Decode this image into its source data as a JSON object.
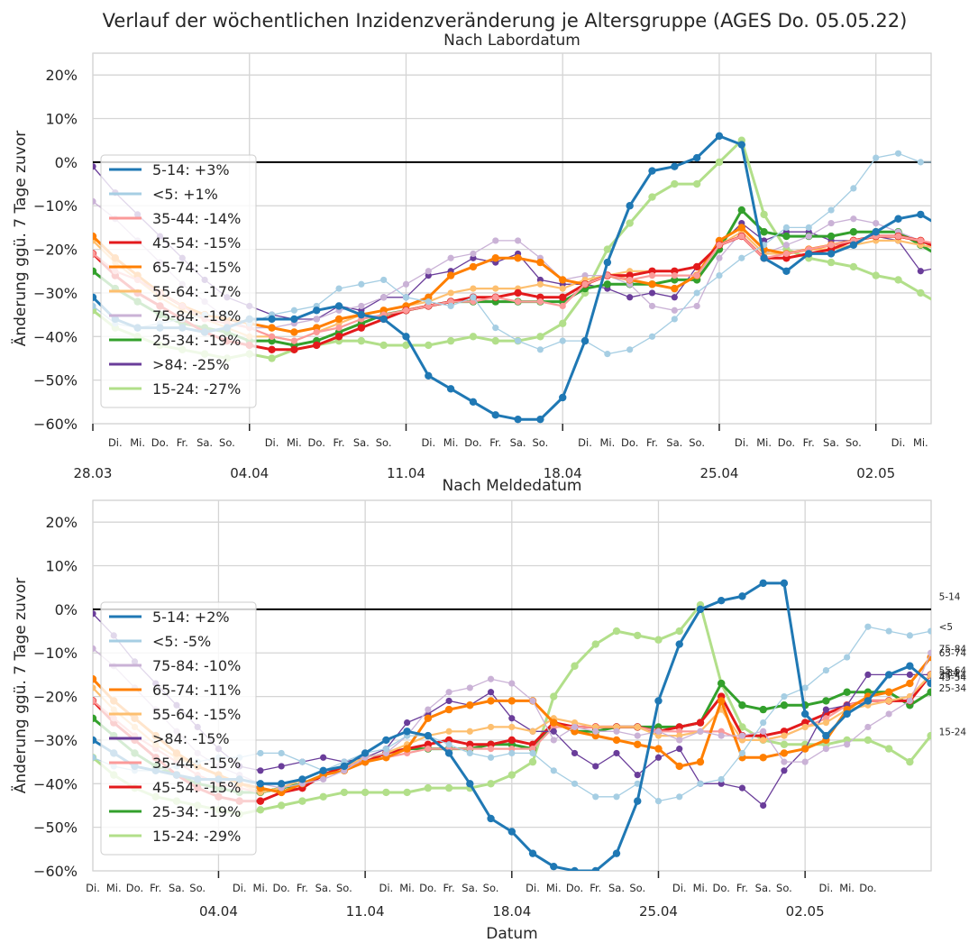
{
  "suptitle": "Verlauf der wöchentlichen Inzidenzveränderung je Altersgruppe (AGES Do. 05.05.22)",
  "colors": {
    "5-14": "#1f78b4",
    "<5": "#a6cee3",
    "35-44": "#fb9a99",
    "45-54": "#e31a1c",
    "65-74": "#ff7f00",
    "55-64": "#fdbf6f",
    "75-84": "#cab2d6",
    "25-34": "#33a02c",
    ">84": "#6a3d9a",
    "15-24": "#b2df8a"
  },
  "chart_data": [
    {
      "type": "line",
      "title": "Nach Labordatum",
      "ylabel": "Änderung ggü. 7 Tage zuvor",
      "xlabel": "",
      "ylim": [
        -60,
        25
      ],
      "yticks": [
        "20%",
        "10%",
        "0%",
        "−10%",
        "−20%",
        "−30%",
        "−40%",
        "−50%",
        "−60%"
      ],
      "grid": true,
      "legend_position": "left",
      "x_start": "28.03",
      "x_end": "05.05",
      "x_major_labels": [
        "28.03",
        "04.04",
        "11.04",
        "18.04",
        "25.04",
        "02.05"
      ],
      "x_minor_labels": [
        "Di.",
        "Mi.",
        "Do.",
        "Fr.",
        "Sa.",
        "So.",
        "Di.",
        "Mi.",
        "Do.",
        "Fr.",
        "Sa.",
        "So.",
        "Di.",
        "Mi.",
        "Do.",
        "Fr.",
        "Sa.",
        "So.",
        "Di.",
        "Mi.",
        "Do.",
        "Fr.",
        "Sa.",
        "So.",
        "Di.",
        "Mi.",
        "Do.",
        "Fr.",
        "Sa.",
        "So.",
        "Di.",
        "Mi."
      ],
      "series": [
        {
          "key": "5-14",
          "legend": "5-14: +3%",
          "end_label": "5-14",
          "values": [
            -31,
            -36,
            -38,
            -38,
            -38,
            -39,
            -38,
            -36,
            -36,
            -36,
            -34,
            -33,
            -35,
            -36,
            -40,
            -49,
            -52,
            -55,
            -58,
            -59,
            -59,
            -54,
            -41,
            -23,
            -10,
            -2,
            -1,
            1,
            6,
            4,
            -22,
            -25,
            -21,
            -21,
            -19,
            -16,
            -13,
            -12,
            -15,
            3
          ],
          "last_i": 39
        },
        {
          "key": "<5",
          "legend": "<5: +1%",
          "end_label": "<5",
          "values": [
            -33,
            -37,
            -38,
            -37,
            -36,
            -35,
            -35,
            -37,
            -35,
            -34,
            -33,
            -29,
            -28,
            -27,
            -31,
            -32,
            -33,
            -31,
            -38,
            -41,
            -43,
            -41,
            -41,
            -44,
            -43,
            -40,
            -36,
            -30,
            -26,
            -22,
            -19,
            -15,
            -15,
            -11,
            -6,
            1,
            2,
            0,
            0,
            1
          ],
          "last_i": 39
        },
        {
          "key": "35-44",
          "legend": "35-44: -14%",
          "end_label": "35-44",
          "values": [
            -21,
            -25,
            -27,
            -30,
            -33,
            -36,
            -37,
            -38,
            -40,
            -41,
            -39,
            -38,
            -36,
            -35,
            -34,
            -33,
            -32,
            -32,
            -31,
            -32,
            -32,
            -33,
            -28,
            -26,
            -27,
            -26,
            -26,
            -26,
            -19,
            -17,
            -22,
            -21,
            -20,
            -19,
            -18,
            -17,
            -17,
            -18,
            -19,
            -14
          ],
          "last_i": 39
        },
        {
          "key": "45-54",
          "legend": "45-54: -15%",
          "end_label": "45-54",
          "values": [
            -21,
            -26,
            -30,
            -33,
            -36,
            -39,
            -41,
            -42,
            -43,
            -43,
            -42,
            -40,
            -38,
            -36,
            -34,
            -33,
            -32,
            -31,
            -31,
            -30,
            -31,
            -31,
            -28,
            -26,
            -26,
            -25,
            -25,
            -24,
            -19,
            -17,
            -22,
            -22,
            -21,
            -20,
            -18,
            -17,
            -17,
            -18,
            -20,
            -15
          ],
          "last_i": 39
        },
        {
          "key": "65-74",
          "legend": "65-74: -15%",
          "end_label": "65-74",
          "values": [
            -17,
            -22,
            -26,
            -30,
            -33,
            -35,
            -36,
            -37,
            -38,
            -39,
            -38,
            -36,
            -35,
            -34,
            -33,
            -31,
            -26,
            -24,
            -22,
            -22,
            -23,
            -27,
            -28,
            -26,
            -27,
            -28,
            -29,
            -26,
            -18,
            -15,
            -20,
            -21,
            -20,
            -19,
            -18,
            -17,
            -17,
            -18,
            -20,
            -15
          ],
          "last_i": 39
        },
        {
          "key": "55-64",
          "legend": "55-64: -17%",
          "end_label": "55-64",
          "values": [
            -18,
            -23,
            -27,
            -31,
            -34,
            -36,
            -38,
            -40,
            -40,
            -41,
            -39,
            -37,
            -35,
            -34,
            -33,
            -32,
            -30,
            -29,
            -29,
            -29,
            -28,
            -29,
            -27,
            -26,
            -25,
            -25,
            -25,
            -24,
            -19,
            -16,
            -21,
            -21,
            -20,
            -20,
            -19,
            -18,
            -18,
            -19,
            -20,
            -17
          ],
          "last_i": 39
        },
        {
          "key": "75-84",
          "legend": "75-84: -18%",
          "end_label": "75-84",
          "values": [
            -9,
            -13,
            -18,
            -23,
            -28,
            -32,
            -36,
            -38,
            -38,
            -37,
            -36,
            -34,
            -33,
            -31,
            -28,
            -25,
            -22,
            -21,
            -18,
            -18,
            -22,
            -27,
            -26,
            -26,
            -28,
            -33,
            -34,
            -33,
            -22,
            -16,
            -21,
            -19,
            -17,
            -14,
            -13,
            -14,
            -16,
            -18,
            -21,
            -18
          ],
          "last_i": 39
        },
        {
          "key": "25-34",
          "legend": "25-34: -19%",
          "end_label": "25-34",
          "values": [
            -25,
            -29,
            -32,
            -35,
            -37,
            -38,
            -39,
            -41,
            -41,
            -42,
            -41,
            -39,
            -37,
            -35,
            -34,
            -33,
            -32,
            -32,
            -32,
            -32,
            -32,
            -32,
            -29,
            -28,
            -28,
            -28,
            -27,
            -27,
            -20,
            -11,
            -16,
            -17,
            -17,
            -17,
            -16,
            -16,
            -16,
            -19,
            -22,
            -19
          ],
          "last_i": 39
        },
        {
          "key": ">84",
          "legend": ">84: -25%",
          "end_label": ">84",
          "values": [
            -1,
            -7,
            -12,
            -17,
            -22,
            -27,
            -31,
            -33,
            -35,
            -36,
            -36,
            -33,
            -34,
            -31,
            -31,
            -26,
            -25,
            -22,
            -23,
            -21,
            -27,
            -28,
            -28,
            -29,
            -31,
            -30,
            -31,
            -24,
            -19,
            -14,
            -18,
            -16,
            -16,
            -18,
            -18,
            -17,
            -18,
            -25,
            -24,
            -24
          ],
          "last_i": 39
        },
        {
          "key": "15-24",
          "legend": "15-24: -27%",
          "end_label": "15-24",
          "values": [
            -34,
            -38,
            -40,
            -42,
            -43,
            -44,
            -45,
            -44,
            -45,
            -43,
            -42,
            -41,
            -41,
            -42,
            -42,
            -42,
            -41,
            -40,
            -41,
            -41,
            -40,
            -37,
            -30,
            -20,
            -14,
            -8,
            -5,
            -5,
            0,
            5,
            -12,
            -20,
            -22,
            -23,
            -24,
            -26,
            -27,
            -30,
            -33,
            -27
          ],
          "last_i": 39
        }
      ]
    },
    {
      "type": "line",
      "title": "Nach Meldedatum",
      "ylabel": "Änderung ggü. 7 Tage zuvor",
      "xlabel": "Datum",
      "ylim": [
        -60,
        25
      ],
      "yticks": [
        "20%",
        "10%",
        "0%",
        "−10%",
        "−20%",
        "−30%",
        "−40%",
        "−50%",
        "−60%"
      ],
      "grid": true,
      "legend_position": "left",
      "x_start": "29.03",
      "x_end": "05.05",
      "x_major_labels": [
        "04.04",
        "11.04",
        "18.04",
        "25.04",
        "02.05"
      ],
      "x_minor_labels": [
        "Di.",
        "Mi.",
        "Do.",
        "Fr.",
        "Sa.",
        "So.",
        "Di.",
        "Mi.",
        "Do.",
        "Fr.",
        "Sa.",
        "So.",
        "Di.",
        "Mi.",
        "Do.",
        "Fr.",
        "Sa.",
        "So.",
        "Di.",
        "Mi.",
        "Do.",
        "Fr.",
        "Sa.",
        "So.",
        "Di.",
        "Mi.",
        "Do.",
        "Fr.",
        "Sa.",
        "So.",
        "Di.",
        "Mi.",
        "Do."
      ],
      "series": [
        {
          "key": "5-14",
          "legend": "5-14: +2%",
          "end_label": "5-14",
          "values": [
            -30,
            -33,
            -36,
            -37,
            -38,
            -39,
            -39,
            -39,
            -40,
            -40,
            -39,
            -37,
            -36,
            -33,
            -30,
            -28,
            -29,
            -33,
            -40,
            -48,
            -51,
            -56,
            -59,
            -60,
            -60,
            -56,
            -44,
            -21,
            -8,
            0,
            2,
            3,
            6,
            6,
            -24,
            -29,
            -24,
            -21,
            -15,
            -13,
            -17,
            2
          ],
          "last_i": 40
        },
        {
          "key": "<5",
          "legend": "<5: -5%",
          "end_label": "<5",
          "values": [
            -34,
            -36,
            -37,
            -37,
            -36,
            -35,
            -34,
            -34,
            -33,
            -33,
            -35,
            -37,
            -35,
            -33,
            -32,
            -29,
            -29,
            -31,
            -33,
            -34,
            -33,
            -33,
            -37,
            -40,
            -43,
            -43,
            -40,
            -44,
            -43,
            -40,
            -39,
            -33,
            -26,
            -20,
            -18,
            -14,
            -11,
            -4,
            -5,
            -6,
            -5
          ],
          "last_i": 40
        },
        {
          "key": "75-84",
          "legend": "75-84: -10%",
          "end_label": "75-84",
          "values": [
            -9,
            -13,
            -18,
            -23,
            -28,
            -33,
            -36,
            -38,
            -40,
            -41,
            -40,
            -39,
            -37,
            -34,
            -33,
            -29,
            -23,
            -19,
            -18,
            -16,
            -17,
            -21,
            -30,
            -27,
            -28,
            -28,
            -29,
            -28,
            -30,
            -28,
            -29,
            -29,
            -28,
            -35,
            -35,
            -32,
            -31,
            -27,
            -24,
            -21,
            -10
          ],
          "last_i": 40
        },
        {
          "key": "65-74",
          "legend": "65-74: -11%",
          "end_label": "65-74",
          "values": [
            -16,
            -21,
            -25,
            -29,
            -33,
            -36,
            -38,
            -40,
            -41,
            -42,
            -40,
            -38,
            -37,
            -35,
            -34,
            -32,
            -25,
            -23,
            -22,
            -21,
            -21,
            -21,
            -26,
            -28,
            -29,
            -30,
            -31,
            -32,
            -36,
            -35,
            -21,
            -34,
            -34,
            -33,
            -32,
            -30,
            -23,
            -20,
            -19,
            -17,
            -11
          ],
          "last_i": 40
        },
        {
          "key": "55-64",
          "legend": "55-64: -15%",
          "end_label": "55-64",
          "values": [
            -18,
            -23,
            -27,
            -31,
            -34,
            -36,
            -38,
            -40,
            -42,
            -41,
            -39,
            -37,
            -36,
            -34,
            -33,
            -31,
            -29,
            -28,
            -28,
            -27,
            -27,
            -28,
            -25,
            -26,
            -27,
            -27,
            -27,
            -29,
            -29,
            -28,
            -23,
            -30,
            -30,
            -29,
            -27,
            -26,
            -23,
            -22,
            -21,
            -20,
            -15
          ],
          "last_i": 40
        },
        {
          "key": ">84",
          "legend": ">84: -15%",
          "end_label": ">84",
          "values": [
            -1,
            -6,
            -12,
            -17,
            -22,
            -27,
            -32,
            -36,
            -37,
            -36,
            -35,
            -34,
            -35,
            -34,
            -32,
            -26,
            -24,
            -21,
            -22,
            -19,
            -25,
            -28,
            -28,
            -33,
            -36,
            -33,
            -38,
            -34,
            -32,
            -40,
            -40,
            -41,
            -45,
            -37,
            -32,
            -23,
            -22,
            -15,
            -15,
            -15,
            -15
          ],
          "last_i": 40
        },
        {
          "key": "35-44",
          "legend": "35-44: -15%",
          "end_label": "35-44",
          "values": [
            -21,
            -25,
            -29,
            -32,
            -35,
            -38,
            -40,
            -41,
            -42,
            -41,
            -39,
            -37,
            -36,
            -35,
            -34,
            -33,
            -32,
            -32,
            -32,
            -32,
            -32,
            -32,
            -27,
            -27,
            -27,
            -27,
            -27,
            -28,
            -28,
            -28,
            -28,
            -30,
            -30,
            -29,
            -27,
            -25,
            -22,
            -21,
            -21,
            -20,
            -15
          ],
          "last_i": 40
        },
        {
          "key": "45-54",
          "legend": "45-54: -15%",
          "end_label": "45-54",
          "values": [
            -21,
            -26,
            -30,
            -34,
            -38,
            -41,
            -43,
            -44,
            -44,
            -42,
            -41,
            -38,
            -36,
            -35,
            -33,
            -32,
            -31,
            -30,
            -31,
            -31,
            -30,
            -31,
            -26,
            -27,
            -27,
            -27,
            -27,
            -28,
            -27,
            -26,
            -20,
            -29,
            -29,
            -28,
            -26,
            -24,
            -22,
            -21,
            -21,
            -21,
            -15
          ],
          "last_i": 40
        },
        {
          "key": "25-34",
          "legend": "25-34: -19%",
          "end_label": "25-34",
          "values": [
            -25,
            -29,
            -33,
            -36,
            -38,
            -40,
            -41,
            -42,
            -42,
            -41,
            -40,
            -38,
            -36,
            -35,
            -33,
            -32,
            -32,
            -32,
            -32,
            -31,
            -31,
            -32,
            -26,
            -28,
            -28,
            -27,
            -27,
            -27,
            -27,
            -26,
            -17,
            -22,
            -23,
            -22,
            -22,
            -21,
            -19,
            -19,
            -19,
            -22,
            -19
          ],
          "last_i": 40
        },
        {
          "key": "15-24",
          "legend": "15-24: -29%",
          "end_label": "15-24",
          "values": [
            -34,
            -38,
            -41,
            -43,
            -44,
            -45,
            -46,
            -47,
            -46,
            -45,
            -44,
            -43,
            -42,
            -42,
            -42,
            -42,
            -41,
            -41,
            -41,
            -40,
            -38,
            -35,
            -20,
            -13,
            -8,
            -5,
            -6,
            -7,
            -5,
            1,
            -17,
            -27,
            -30,
            -31,
            -31,
            -31,
            -30,
            -30,
            -32,
            -35,
            -29
          ],
          "last_i": 40
        }
      ]
    }
  ]
}
